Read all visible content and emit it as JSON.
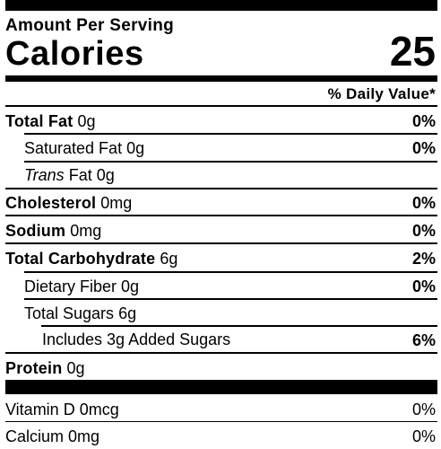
{
  "header": {
    "amount_per_serving": "Amount Per Serving",
    "calories_label": "Calories",
    "calories_value": "25",
    "daily_value_heading": "% Daily Value*"
  },
  "nutrients": [
    {
      "name": "Total Fat",
      "amount": "0g",
      "dv": "0%"
    },
    {
      "name": "Saturated Fat",
      "amount": "0g",
      "dv": "0%"
    },
    {
      "name_italic": "Trans",
      "name": "Fat",
      "amount": "0g"
    },
    {
      "name": "Cholesterol",
      "amount": "0mg",
      "dv": "0%"
    },
    {
      "name": "Sodium",
      "amount": "0mg",
      "dv": "0%"
    },
    {
      "name": "Total Carbohydrate",
      "amount": "6g",
      "dv": "2%"
    },
    {
      "name": "Dietary Fiber",
      "amount": "0g",
      "dv": "0%"
    },
    {
      "name": "Total Sugars",
      "amount": "6g"
    },
    {
      "name": "Includes 3g Added Sugars",
      "dv": "6%"
    },
    {
      "name": "Protein",
      "amount": "0g"
    }
  ],
  "vitamins": [
    {
      "name": "Vitamin D",
      "amount": "0mcg",
      "dv": "0%"
    },
    {
      "name": "Calcium",
      "amount": "0mg",
      "dv": "0%"
    }
  ]
}
